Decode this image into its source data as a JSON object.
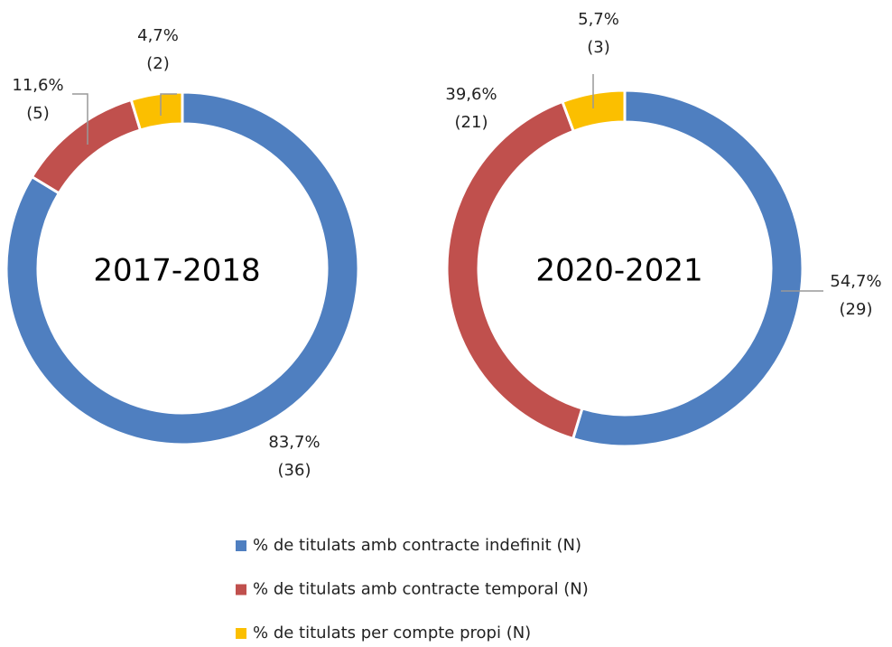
{
  "chart_data": [
    {
      "type": "pie",
      "donut": true,
      "title": "2017-2018",
      "categories": [
        "% de titulats amb contracte indefinit (N)",
        "% de titulats amb contracte temporal (N)",
        "% de titulats per compte propi (N)"
      ],
      "values": [
        83.7,
        11.6,
        4.7
      ],
      "value_labels": [
        "83,7%",
        "11,6%",
        "4,7%"
      ],
      "count_labels": [
        "(36)",
        "(5)",
        "(2)"
      ],
      "colors": [
        "#4f7fc0",
        "#c0504d",
        "#fbbf00"
      ]
    },
    {
      "type": "pie",
      "donut": true,
      "title": "2020-2021",
      "categories": [
        "% de titulats amb contracte indefinit (N)",
        "% de titulats amb contracte temporal (N)",
        "% de titulats per compte propi (N)"
      ],
      "values": [
        54.7,
        39.6,
        5.7
      ],
      "value_labels": [
        "54,7%",
        "39,6%",
        "5,7%"
      ],
      "count_labels": [
        "(29)",
        "(21)",
        "(3)"
      ],
      "colors": [
        "#4f7fc0",
        "#c0504d",
        "#fbbf00"
      ]
    }
  ]
}
